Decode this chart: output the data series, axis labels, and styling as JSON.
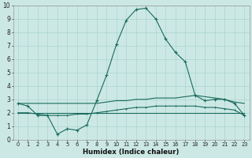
{
  "xlabel": "Humidex (Indice chaleur)",
  "x": [
    0,
    1,
    2,
    3,
    4,
    5,
    6,
    7,
    8,
    9,
    10,
    11,
    12,
    13,
    14,
    15,
    16,
    17,
    18,
    19,
    20,
    21,
    22,
    23
  ],
  "series_peak": [
    2.7,
    2.5,
    1.8,
    1.8,
    0.4,
    0.8,
    0.7,
    1.1,
    2.9,
    4.8,
    7.1,
    8.9,
    9.7,
    9.8,
    9.0,
    7.5,
    6.5,
    5.8,
    3.3,
    2.9,
    3.0,
    3.0,
    2.7,
    1.8
  ],
  "series_diagonal": [
    2.7,
    2.7,
    2.7,
    2.7,
    2.7,
    2.7,
    2.7,
    2.7,
    2.7,
    2.8,
    2.9,
    2.9,
    3.0,
    3.0,
    3.1,
    3.1,
    3.1,
    3.2,
    3.3,
    3.2,
    3.1,
    3.0,
    2.8,
    2.7
  ],
  "series_flat": [
    2.0,
    2.0,
    1.9,
    1.8,
    1.8,
    1.8,
    1.9,
    1.9,
    2.0,
    2.1,
    2.2,
    2.3,
    2.4,
    2.4,
    2.5,
    2.5,
    2.5,
    2.5,
    2.5,
    2.4,
    2.4,
    2.3,
    2.2,
    1.8
  ],
  "series_line": [
    2.0,
    2.0,
    2.0,
    2.0,
    2.0,
    2.0,
    2.0,
    2.0,
    2.0,
    2.0,
    2.0,
    2.0,
    2.0,
    2.0,
    2.0,
    2.0,
    2.0,
    2.0,
    2.0,
    2.0,
    2.0,
    2.0,
    2.0,
    2.0
  ],
  "line_color": "#1a6b5e",
  "bg_color": "#cce8e4",
  "grid_color": "#aad4ce",
  "ylim": [
    0,
    10
  ],
  "xlim": [
    -0.5,
    23.5
  ],
  "yticks": [
    0,
    1,
    2,
    3,
    4,
    5,
    6,
    7,
    8,
    9,
    10
  ],
  "xticks": [
    0,
    1,
    2,
    3,
    4,
    5,
    6,
    7,
    8,
    9,
    10,
    11,
    12,
    13,
    14,
    15,
    16,
    17,
    18,
    19,
    20,
    21,
    22,
    23
  ]
}
